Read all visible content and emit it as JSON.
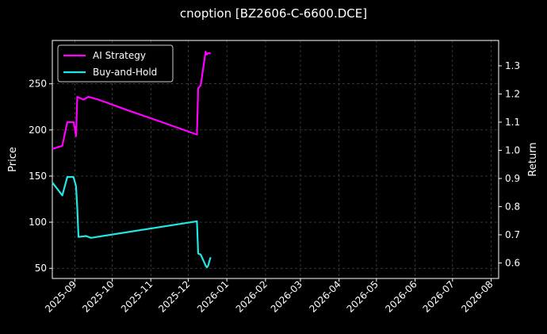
{
  "chart_data": {
    "type": "line",
    "title": "cnoption [BZ2606-C-6600.DCE]",
    "ylabel_left": "Price",
    "ylabel_right": "Return",
    "xlabel": "",
    "background": "#000000",
    "grid": true,
    "legend_position": "top-left",
    "x_ticks": [
      "2025-09",
      "2025-10",
      "2025-11",
      "2025-12",
      "2026-01",
      "2026-02",
      "2026-03",
      "2026-04",
      "2026-05",
      "2026-06",
      "2026-07",
      "2026-08"
    ],
    "y_left_ticks": [
      50,
      100,
      150,
      200,
      250
    ],
    "y_left_range": [
      39,
      297
    ],
    "y_right_ticks": [
      0.6,
      0.7,
      0.8,
      0.9,
      1.0,
      1.1,
      1.2,
      1.3
    ],
    "y_right_range": [
      0.545,
      1.39
    ],
    "x_range": [
      "2025-08-14",
      "2026-08-07"
    ],
    "series": [
      {
        "name": "AI Strategy",
        "color": "#ff00ff",
        "axis": "right",
        "points": [
          [
            "2025-08-14",
            1.005
          ],
          [
            "2025-08-22",
            1.016
          ],
          [
            "2025-08-26",
            1.1
          ],
          [
            "2025-08-31",
            1.1
          ],
          [
            "2025-09-01",
            1.08
          ],
          [
            "2025-09-02",
            1.05
          ],
          [
            "2025-09-03",
            1.19
          ],
          [
            "2025-09-08",
            1.18
          ],
          [
            "2025-09-12",
            1.19
          ],
          [
            "2025-09-20",
            1.18
          ],
          [
            "2025-10-15",
            1.14
          ],
          [
            "2025-11-10",
            1.1
          ],
          [
            "2025-12-08",
            1.056
          ],
          [
            "2025-12-09",
            1.22
          ],
          [
            "2025-12-11",
            1.23
          ],
          [
            "2025-12-15",
            1.35
          ],
          [
            "2025-12-16",
            1.34
          ],
          [
            "2025-12-17",
            1.345
          ],
          [
            "2025-12-19",
            1.345
          ]
        ]
      },
      {
        "name": "Buy-and-Hold",
        "color": "#22e6e6",
        "axis": "left",
        "points": [
          [
            "2025-08-14",
            143
          ],
          [
            "2025-08-22",
            129
          ],
          [
            "2025-08-26",
            149
          ],
          [
            "2025-08-31",
            149
          ],
          [
            "2025-09-02",
            139
          ],
          [
            "2025-09-03",
            115
          ],
          [
            "2025-09-04",
            84
          ],
          [
            "2025-09-10",
            85
          ],
          [
            "2025-09-14",
            83
          ],
          [
            "2025-12-08",
            101
          ],
          [
            "2025-12-09",
            66
          ],
          [
            "2025-12-11",
            65
          ],
          [
            "2025-12-15",
            53
          ],
          [
            "2025-12-16",
            51
          ],
          [
            "2025-12-17",
            53
          ],
          [
            "2025-12-18",
            58
          ],
          [
            "2025-12-19",
            62
          ]
        ]
      }
    ]
  }
}
